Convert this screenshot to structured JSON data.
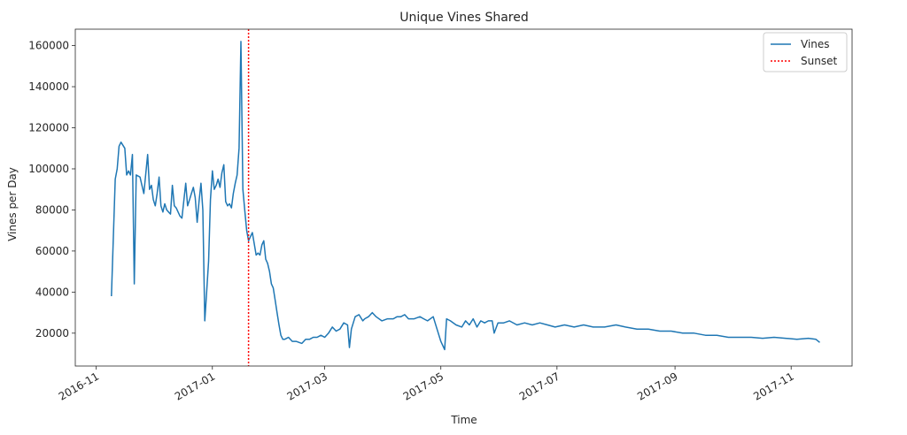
{
  "chart_data": {
    "type": "line",
    "title": "Unique Vines Shared",
    "xlabel": "Time",
    "ylabel": "Vines per Day",
    "xlim": [
      "2016-10-21",
      "2017-12-03"
    ],
    "ylim": [
      4000,
      168000
    ],
    "x_ticks": [
      "2016-11-01",
      "2017-01-01",
      "2017-03-01",
      "2017-05-01",
      "2017-07-01",
      "2017-09-01",
      "2017-11-01"
    ],
    "x_tick_labels": [
      "2016-11",
      "2017-01",
      "2017-03",
      "2017-05",
      "2017-07",
      "2017-09",
      "2017-11"
    ],
    "y_ticks": [
      20000,
      40000,
      60000,
      80000,
      100000,
      120000,
      140000,
      160000
    ],
    "y_tick_labels": [
      "20000",
      "40000",
      "60000",
      "80000",
      "100000",
      "120000",
      "140000",
      "160000"
    ],
    "legend": {
      "position": "top-right",
      "entries": [
        "Vines",
        "Sunset"
      ]
    },
    "grid": false,
    "series": [
      {
        "name": "Vines",
        "color": "#1f77b4",
        "style": "solid",
        "points": [
          [
            "2016-11-09",
            38000
          ],
          [
            "2016-11-11",
            95000
          ],
          [
            "2016-11-12",
            100000
          ],
          [
            "2016-11-13",
            111000
          ],
          [
            "2016-11-14",
            113000
          ],
          [
            "2016-11-16",
            110000
          ],
          [
            "2016-11-17",
            97000
          ],
          [
            "2016-11-18",
            99000
          ],
          [
            "2016-11-19",
            97000
          ],
          [
            "2016-11-20",
            107000
          ],
          [
            "2016-11-21",
            44000
          ],
          [
            "2016-11-22",
            97000
          ],
          [
            "2016-11-24",
            96000
          ],
          [
            "2016-11-25",
            92000
          ],
          [
            "2016-11-26",
            88000
          ],
          [
            "2016-11-28",
            107000
          ],
          [
            "2016-11-29",
            90000
          ],
          [
            "2016-11-30",
            92000
          ],
          [
            "2016-12-01",
            85000
          ],
          [
            "2016-12-02",
            82000
          ],
          [
            "2016-12-03",
            88000
          ],
          [
            "2016-12-04",
            96000
          ],
          [
            "2016-12-05",
            82000
          ],
          [
            "2016-12-06",
            79000
          ],
          [
            "2016-12-07",
            83000
          ],
          [
            "2016-12-08",
            80000
          ],
          [
            "2016-12-09",
            79000
          ],
          [
            "2016-12-10",
            78000
          ],
          [
            "2016-12-11",
            92000
          ],
          [
            "2016-12-12",
            82000
          ],
          [
            "2016-12-13",
            81000
          ],
          [
            "2016-12-15",
            77000
          ],
          [
            "2016-12-16",
            76000
          ],
          [
            "2016-12-18",
            93000
          ],
          [
            "2016-12-19",
            82000
          ],
          [
            "2016-12-20",
            85000
          ],
          [
            "2016-12-21",
            88000
          ],
          [
            "2016-12-22",
            91000
          ],
          [
            "2016-12-23",
            86000
          ],
          [
            "2016-12-24",
            74000
          ],
          [
            "2016-12-25",
            84000
          ],
          [
            "2016-12-26",
            93000
          ],
          [
            "2016-12-27",
            80000
          ],
          [
            "2016-12-28",
            26000
          ],
          [
            "2016-12-29",
            40000
          ],
          [
            "2016-12-30",
            55000
          ],
          [
            "2016-12-31",
            85000
          ],
          [
            "2017-01-01",
            99000
          ],
          [
            "2017-01-02",
            90000
          ],
          [
            "2017-01-03",
            92000
          ],
          [
            "2017-01-04",
            95000
          ],
          [
            "2017-01-05",
            91000
          ],
          [
            "2017-01-06",
            98000
          ],
          [
            "2017-01-07",
            102000
          ],
          [
            "2017-01-08",
            84000
          ],
          [
            "2017-01-09",
            82000
          ],
          [
            "2017-01-10",
            83000
          ],
          [
            "2017-01-11",
            81000
          ],
          [
            "2017-01-12",
            88000
          ],
          [
            "2017-01-13",
            93000
          ],
          [
            "2017-01-14",
            97000
          ],
          [
            "2017-01-15",
            110000
          ],
          [
            "2017-01-16",
            162000
          ],
          [
            "2017-01-17",
            90000
          ],
          [
            "2017-01-18",
            80000
          ],
          [
            "2017-01-19",
            70000
          ],
          [
            "2017-01-20",
            65000
          ],
          [
            "2017-01-21",
            67000
          ],
          [
            "2017-01-22",
            69000
          ],
          [
            "2017-01-24",
            58000
          ],
          [
            "2017-01-25",
            59000
          ],
          [
            "2017-01-26",
            58000
          ],
          [
            "2017-01-27",
            63000
          ],
          [
            "2017-01-28",
            65000
          ],
          [
            "2017-01-29",
            56000
          ],
          [
            "2017-01-30",
            54000
          ],
          [
            "2017-01-31",
            50000
          ],
          [
            "2017-02-01",
            44000
          ],
          [
            "2017-02-02",
            42000
          ],
          [
            "2017-02-03",
            36000
          ],
          [
            "2017-02-04",
            30000
          ],
          [
            "2017-02-05",
            24000
          ],
          [
            "2017-02-06",
            19000
          ],
          [
            "2017-02-07",
            17000
          ],
          [
            "2017-02-08",
            17000
          ],
          [
            "2017-02-10",
            18000
          ],
          [
            "2017-02-12",
            16000
          ],
          [
            "2017-02-14",
            16000
          ],
          [
            "2017-02-17",
            15000
          ],
          [
            "2017-02-19",
            17000
          ],
          [
            "2017-02-21",
            17000
          ],
          [
            "2017-02-23",
            18000
          ],
          [
            "2017-02-25",
            18000
          ],
          [
            "2017-02-27",
            19000
          ],
          [
            "2017-03-01",
            18000
          ],
          [
            "2017-03-03",
            20000
          ],
          [
            "2017-03-05",
            23000
          ],
          [
            "2017-03-07",
            21000
          ],
          [
            "2017-03-09",
            22000
          ],
          [
            "2017-03-11",
            25000
          ],
          [
            "2017-03-13",
            24000
          ],
          [
            "2017-03-14",
            13000
          ],
          [
            "2017-03-15",
            22000
          ],
          [
            "2017-03-17",
            28000
          ],
          [
            "2017-03-19",
            29000
          ],
          [
            "2017-03-21",
            26000
          ],
          [
            "2017-03-22",
            27000
          ],
          [
            "2017-03-24",
            28000
          ],
          [
            "2017-03-26",
            30000
          ],
          [
            "2017-03-28",
            28000
          ],
          [
            "2017-03-31",
            26000
          ],
          [
            "2017-04-03",
            27000
          ],
          [
            "2017-04-06",
            27000
          ],
          [
            "2017-04-08",
            28000
          ],
          [
            "2017-04-10",
            28000
          ],
          [
            "2017-04-12",
            29000
          ],
          [
            "2017-04-14",
            27000
          ],
          [
            "2017-04-17",
            27000
          ],
          [
            "2017-04-20",
            28000
          ],
          [
            "2017-04-22",
            27000
          ],
          [
            "2017-04-24",
            26000
          ],
          [
            "2017-04-27",
            28000
          ],
          [
            "2017-04-29",
            22000
          ],
          [
            "2017-05-01",
            16000
          ],
          [
            "2017-05-03",
            12000
          ],
          [
            "2017-05-04",
            27000
          ],
          [
            "2017-05-06",
            26000
          ],
          [
            "2017-05-09",
            24000
          ],
          [
            "2017-05-12",
            23000
          ],
          [
            "2017-05-14",
            26000
          ],
          [
            "2017-05-16",
            24000
          ],
          [
            "2017-05-18",
            27000
          ],
          [
            "2017-05-20",
            23000
          ],
          [
            "2017-05-22",
            26000
          ],
          [
            "2017-05-24",
            25000
          ],
          [
            "2017-05-26",
            26000
          ],
          [
            "2017-05-28",
            26000
          ],
          [
            "2017-05-29",
            20000
          ],
          [
            "2017-05-31",
            25000
          ],
          [
            "2017-06-03",
            25000
          ],
          [
            "2017-06-06",
            26000
          ],
          [
            "2017-06-10",
            24000
          ],
          [
            "2017-06-14",
            25000
          ],
          [
            "2017-06-18",
            24000
          ],
          [
            "2017-06-22",
            25000
          ],
          [
            "2017-06-26",
            24000
          ],
          [
            "2017-06-30",
            23000
          ],
          [
            "2017-07-05",
            24000
          ],
          [
            "2017-07-10",
            23000
          ],
          [
            "2017-07-15",
            24000
          ],
          [
            "2017-07-20",
            23000
          ],
          [
            "2017-07-26",
            23000
          ],
          [
            "2017-08-01",
            24000
          ],
          [
            "2017-08-06",
            23000
          ],
          [
            "2017-08-12",
            22000
          ],
          [
            "2017-08-18",
            22000
          ],
          [
            "2017-08-24",
            21000
          ],
          [
            "2017-08-30",
            21000
          ],
          [
            "2017-09-05",
            20000
          ],
          [
            "2017-09-11",
            20000
          ],
          [
            "2017-09-17",
            19000
          ],
          [
            "2017-09-23",
            19000
          ],
          [
            "2017-09-29",
            18000
          ],
          [
            "2017-10-05",
            18000
          ],
          [
            "2017-10-11",
            18000
          ],
          [
            "2017-10-17",
            17500
          ],
          [
            "2017-10-23",
            18000
          ],
          [
            "2017-10-29",
            17500
          ],
          [
            "2017-11-04",
            17000
          ],
          [
            "2017-11-10",
            17500
          ],
          [
            "2017-11-14",
            17000
          ],
          [
            "2017-11-16",
            15500
          ]
        ]
      },
      {
        "name": "Sunset",
        "color": "#ff0000",
        "style": "dotted",
        "vertical_line_at": "2017-01-20"
      }
    ]
  }
}
